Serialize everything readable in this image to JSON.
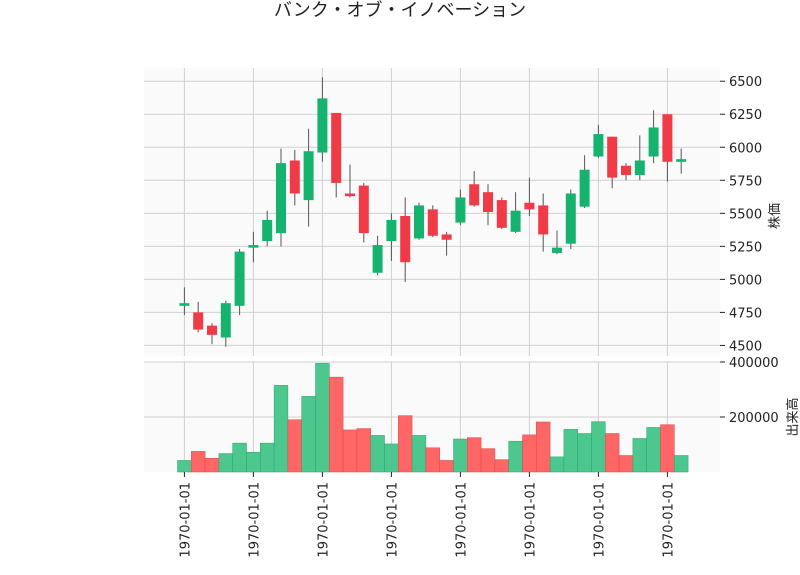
{
  "chart_data": {
    "type": "candlestick",
    "title": "バンク・オブ・イノベーション",
    "x_tick_labels": [
      "1970-01-01",
      "1970-01-01",
      "1970-01-01",
      "1970-01-01",
      "1970-01-01",
      "1970-01-01",
      "1970-01-01",
      "1970-01-01"
    ],
    "price_panel": {
      "ylabel": "株価",
      "ylim": [
        4420,
        6600
      ],
      "yticks": [
        4500,
        4750,
        5000,
        5250,
        5500,
        5750,
        6000,
        6250,
        6500
      ],
      "grid": true
    },
    "volume_panel": {
      "ylabel": "出来高",
      "ylim": [
        0,
        400000
      ],
      "yticks": [
        200000,
        400000
      ],
      "grid": true
    },
    "colors": {
      "up": "#16b36e",
      "down": "#f03a47",
      "vol_up": "#4cc88f",
      "vol_down": "#ff6666",
      "wick": "#555555",
      "panel_bg": "#fafafa",
      "grid": "#d0d0d0"
    },
    "candles": [
      {
        "open": 4800,
        "high": 4940,
        "low": 4730,
        "close": 4820,
        "volume": 42000
      },
      {
        "open": 4750,
        "high": 4830,
        "low": 4600,
        "close": 4620,
        "volume": 75000
      },
      {
        "open": 4650,
        "high": 4670,
        "low": 4510,
        "close": 4580,
        "volume": 50000
      },
      {
        "open": 4560,
        "high": 4840,
        "low": 4490,
        "close": 4820,
        "volume": 67000
      },
      {
        "open": 4800,
        "high": 5230,
        "low": 4730,
        "close": 5210,
        "volume": 105000
      },
      {
        "open": 5240,
        "high": 5360,
        "low": 5130,
        "close": 5260,
        "volume": 72000
      },
      {
        "open": 5290,
        "high": 5520,
        "low": 5250,
        "close": 5450,
        "volume": 105000
      },
      {
        "open": 5350,
        "high": 5990,
        "low": 5250,
        "close": 5880,
        "volume": 315000
      },
      {
        "open": 5900,
        "high": 5980,
        "low": 5560,
        "close": 5650,
        "volume": 190000
      },
      {
        "open": 5600,
        "high": 6140,
        "low": 5400,
        "close": 5970,
        "volume": 275000
      },
      {
        "open": 5960,
        "high": 6530,
        "low": 5890,
        "close": 6370,
        "volume": 395000
      },
      {
        "open": 6260,
        "high": 6260,
        "low": 5620,
        "close": 5730,
        "volume": 345000
      },
      {
        "open": 5650,
        "high": 5870,
        "low": 5620,
        "close": 5630,
        "volume": 153000
      },
      {
        "open": 5710,
        "high": 5730,
        "low": 5280,
        "close": 5350,
        "volume": 158000
      },
      {
        "open": 5050,
        "high": 5330,
        "low": 5030,
        "close": 5260,
        "volume": 133000
      },
      {
        "open": 5290,
        "high": 5500,
        "low": 5140,
        "close": 5450,
        "volume": 102000
      },
      {
        "open": 5480,
        "high": 5620,
        "low": 4980,
        "close": 5130,
        "volume": 205000
      },
      {
        "open": 5310,
        "high": 5580,
        "low": 5300,
        "close": 5560,
        "volume": 133000
      },
      {
        "open": 5530,
        "high": 5560,
        "low": 5320,
        "close": 5330,
        "volume": 88000
      },
      {
        "open": 5340,
        "high": 5360,
        "low": 5180,
        "close": 5300,
        "volume": 42000
      },
      {
        "open": 5430,
        "high": 5680,
        "low": 5410,
        "close": 5620,
        "volume": 120000
      },
      {
        "open": 5720,
        "high": 5820,
        "low": 5550,
        "close": 5560,
        "volume": 125000
      },
      {
        "open": 5660,
        "high": 5720,
        "low": 5410,
        "close": 5510,
        "volume": 85000
      },
      {
        "open": 5600,
        "high": 5620,
        "low": 5380,
        "close": 5390,
        "volume": 45000
      },
      {
        "open": 5360,
        "high": 5660,
        "low": 5350,
        "close": 5520,
        "volume": 112000
      },
      {
        "open": 5580,
        "high": 5770,
        "low": 5480,
        "close": 5530,
        "volume": 135000
      },
      {
        "open": 5560,
        "high": 5650,
        "low": 5210,
        "close": 5340,
        "volume": 182000
      },
      {
        "open": 5200,
        "high": 5370,
        "low": 5190,
        "close": 5240,
        "volume": 55000
      },
      {
        "open": 5270,
        "high": 5680,
        "low": 5230,
        "close": 5650,
        "volume": 155000
      },
      {
        "open": 5550,
        "high": 5940,
        "low": 5540,
        "close": 5830,
        "volume": 140000
      },
      {
        "open": 5930,
        "high": 6170,
        "low": 5920,
        "close": 6100,
        "volume": 183000
      },
      {
        "open": 6080,
        "high": 6080,
        "low": 5690,
        "close": 5770,
        "volume": 140000
      },
      {
        "open": 5860,
        "high": 5880,
        "low": 5750,
        "close": 5790,
        "volume": 60000
      },
      {
        "open": 5790,
        "high": 6090,
        "low": 5750,
        "close": 5900,
        "volume": 122000
      },
      {
        "open": 5930,
        "high": 6280,
        "low": 5880,
        "close": 6150,
        "volume": 162000
      },
      {
        "open": 6250,
        "high": 6250,
        "low": 5740,
        "close": 5890,
        "volume": 172000
      },
      {
        "open": 5890,
        "high": 5990,
        "low": 5800,
        "close": 5910,
        "volume": 60000
      }
    ]
  }
}
